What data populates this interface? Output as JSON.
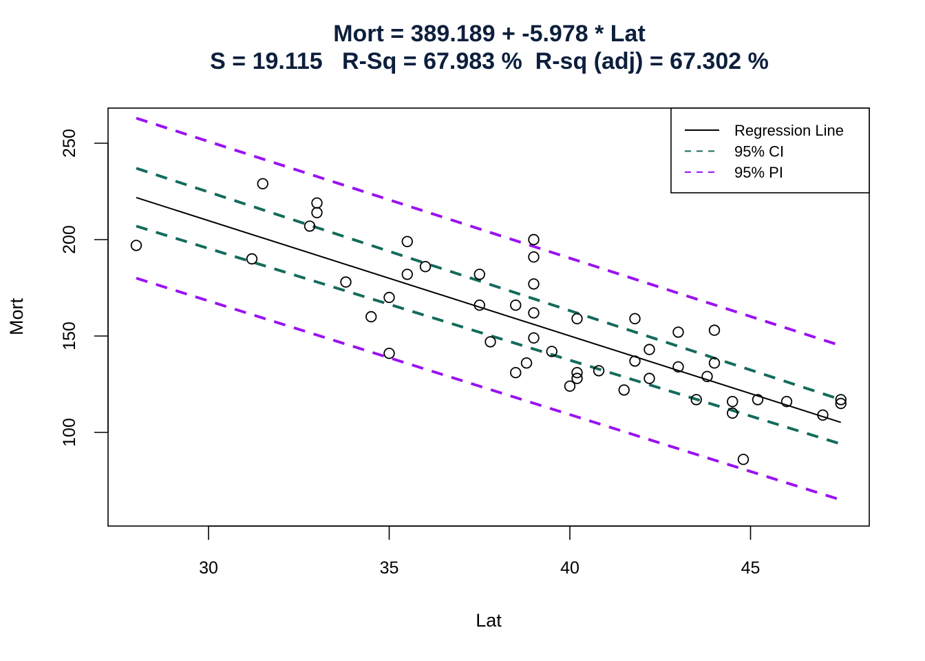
{
  "chart_data": {
    "type": "scatter",
    "title": "Mort = 389.189 + -5.978 * Lat",
    "subtitle": "S = 19.115   R-Sq = 67.983 %  R-sq (adj) = 67.302 %",
    "xlabel": "Lat",
    "ylabel": "Mort",
    "xlim": [
      27.2,
      48.3
    ],
    "ylim": [
      60,
      270
    ],
    "x_ticks": [
      30,
      35,
      40,
      45
    ],
    "y_ticks": [
      100,
      150,
      200,
      250
    ],
    "grid": false,
    "legend_position": "top-right",
    "legend": [
      {
        "label": "Regression Line",
        "color": "#000000",
        "style": "solid"
      },
      {
        "label": "95% CI",
        "color": "#146b5b",
        "style": "dashed"
      },
      {
        "label": "95% PI",
        "color": "#9a12f0",
        "style": "dashed"
      }
    ],
    "regression": {
      "intercept": 389.189,
      "slope": -5.978,
      "S": 19.115,
      "r_sq": 67.983,
      "r_sq_adj": 67.302
    },
    "lines": [
      {
        "name": "Regression Line",
        "color": "#000000",
        "dashed": false,
        "x": [
          28.0,
          47.5
        ],
        "y": [
          221.8,
          105.2
        ]
      },
      {
        "name": "95% CI upper",
        "color": "#146b5b",
        "dashed": true,
        "x": [
          28.0,
          47.5
        ],
        "y": [
          237,
          117
        ]
      },
      {
        "name": "95% CI lower",
        "color": "#146b5b",
        "dashed": true,
        "x": [
          28.0,
          47.5
        ],
        "y": [
          207,
          94
        ]
      },
      {
        "name": "95% PI upper",
        "color": "#9a12f0",
        "dashed": true,
        "x": [
          28.0,
          47.5
        ],
        "y": [
          263,
          145
        ]
      },
      {
        "name": "95% PI lower",
        "color": "#9a12f0",
        "dashed": true,
        "x": [
          28.0,
          47.5
        ],
        "y": [
          180,
          65
        ]
      }
    ],
    "points": {
      "x": [
        28.0,
        31.2,
        31.5,
        32.8,
        33.0,
        33.0,
        33.8,
        34.5,
        35.0,
        35.0,
        35.5,
        35.5,
        36.0,
        37.5,
        37.5,
        37.8,
        38.5,
        38.5,
        38.8,
        39.0,
        39.0,
        39.0,
        39.0,
        39.0,
        39.5,
        40.0,
        40.2,
        40.2,
        40.2,
        40.8,
        41.5,
        41.8,
        41.8,
        42.2,
        42.2,
        43.0,
        43.0,
        43.5,
        43.8,
        44.0,
        44.0,
        44.5,
        44.5,
        44.8,
        45.2,
        46.0,
        47.0,
        47.5,
        47.5
      ],
      "y": [
        197,
        190,
        229,
        207,
        219,
        214,
        178,
        160,
        170,
        141,
        199,
        182,
        186,
        182,
        166,
        147,
        166,
        131,
        136,
        200,
        191,
        177,
        162,
        149,
        142,
        124,
        159,
        131,
        128,
        132,
        122,
        159,
        137,
        143,
        128,
        152,
        134,
        117,
        129,
        153,
        136,
        116,
        110,
        86,
        117,
        116,
        109,
        117,
        115
      ]
    }
  }
}
